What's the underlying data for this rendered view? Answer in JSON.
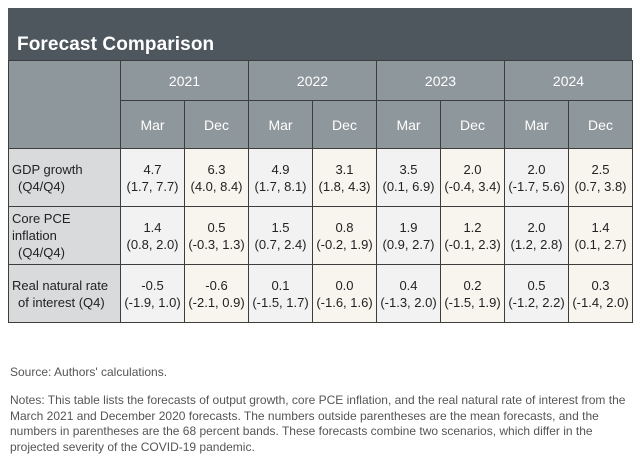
{
  "title": "Forecast Comparison",
  "years": [
    "2021",
    "2022",
    "2023",
    "2024"
  ],
  "months": [
    "Mar",
    "Dec",
    "Mar",
    "Dec",
    "Mar",
    "Dec",
    "Mar",
    "Dec"
  ],
  "rows": [
    {
      "label_line1": "GDP growth",
      "label_line2": "(Q4/Q4)",
      "cells": [
        {
          "mean": "4.7",
          "band": "(1.7, 7.7)"
        },
        {
          "mean": "6.3",
          "band": "(4.0, 8.4)"
        },
        {
          "mean": "4.9",
          "band": "(1.7, 8.1)"
        },
        {
          "mean": "3.1",
          "band": "(1.8, 4.3)"
        },
        {
          "mean": "3.5",
          "band": "(0.1, 6.9)"
        },
        {
          "mean": "2.0",
          "band": "(-0.4, 3.4)"
        },
        {
          "mean": "2.0",
          "band": "(-1.7, 5.6)"
        },
        {
          "mean": "2.5",
          "band": "(0.7, 3.8)"
        }
      ]
    },
    {
      "label_line1": "Core PCE inflation",
      "label_line2": "(Q4/Q4)",
      "cells": [
        {
          "mean": "1.4",
          "band": "(0.8, 2.0)"
        },
        {
          "mean": "0.5",
          "band": "(-0.3, 1.3)"
        },
        {
          "mean": "1.5",
          "band": "(0.7, 2.4)"
        },
        {
          "mean": "0.8",
          "band": "(-0.2, 1.9)"
        },
        {
          "mean": "1.9",
          "band": "(0.9, 2.7)"
        },
        {
          "mean": "1.2",
          "band": "(-0.1, 2.3)"
        },
        {
          "mean": "2.0",
          "band": "(1.2, 2.8)"
        },
        {
          "mean": "1.4",
          "band": "(0.1, 2.7)"
        }
      ]
    },
    {
      "label_line1": "Real natural rate",
      "label_line2": "of interest (Q4)",
      "cells": [
        {
          "mean": "-0.5",
          "band": "(-1.9, 1.0)"
        },
        {
          "mean": "-0.6",
          "band": "(-2.1, 0.9)"
        },
        {
          "mean": "0.1",
          "band": "(-1.5, 1.7)"
        },
        {
          "mean": "0.0",
          "band": "(-1.6, 1.6)"
        },
        {
          "mean": "0.4",
          "band": "(-1.3, 2.0)"
        },
        {
          "mean": "0.2",
          "band": "(-1.5, 1.9)"
        },
        {
          "mean": "0.5",
          "band": "(-1.2, 2.2)"
        },
        {
          "mean": "0.3",
          "band": "(-1.4, 2.0)"
        }
      ]
    }
  ],
  "source": "Source: Authors' calculations.",
  "notes": "Notes: This table lists the forecasts of output growth, core PCE inflation, and the real natural rate of interest from the March 2021 and December 2020 forecasts. The numbers outside parentheses are the mean forecasts, and the numbers in parentheses are the 68 percent bands. These forecasts combine two scenarios, which differ in the projected severity of the COVID-19 pandemic."
}
